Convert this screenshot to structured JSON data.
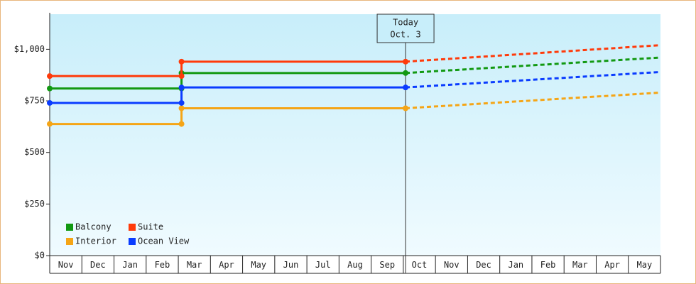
{
  "chart_data": {
    "type": "line",
    "categories": [
      "Nov",
      "Dec",
      "Jan",
      "Feb",
      "Mar",
      "Apr",
      "May",
      "Jun",
      "Jul",
      "Aug",
      "Sep",
      "Oct",
      "Nov",
      "Dec",
      "Jan",
      "Feb",
      "Mar",
      "Apr",
      "May"
    ],
    "xlim": [
      0,
      19
    ],
    "ylim": [
      0,
      1170
    ],
    "yticks": [
      {
        "value": 0,
        "label": "$0"
      },
      {
        "value": 250,
        "label": "$250"
      },
      {
        "value": 500,
        "label": "$500"
      },
      {
        "value": 750,
        "label": "$750"
      },
      {
        "value": 1000,
        "label": "$1,000"
      }
    ],
    "annotation": {
      "lines": [
        "Today",
        "Oct. 3"
      ],
      "x": 11.07
    },
    "series": [
      {
        "name": "Balcony",
        "color": "#129912",
        "x": [
          0,
          4.1,
          4.1,
          11.07
        ],
        "values": [
          810,
          810,
          885,
          885
        ],
        "forecast": {
          "x": [
            11.07,
            19
          ],
          "values": [
            885,
            960
          ]
        }
      },
      {
        "name": "Suite",
        "color": "#ff3a0a",
        "x": [
          0,
          4.1,
          4.1,
          11.07
        ],
        "values": [
          870,
          870,
          940,
          940
        ],
        "forecast": {
          "x": [
            11.07,
            19
          ],
          "values": [
            940,
            1020
          ]
        }
      },
      {
        "name": "Interior",
        "color": "#f5a516",
        "x": [
          0,
          4.1,
          4.1,
          11.07
        ],
        "values": [
          638,
          638,
          714,
          714
        ],
        "forecast": {
          "x": [
            11.07,
            19
          ],
          "values": [
            714,
            790
          ]
        }
      },
      {
        "name": "Ocean View",
        "color": "#0a3cff",
        "x": [
          0,
          4.1,
          4.1,
          11.07
        ],
        "values": [
          740,
          740,
          815,
          815
        ],
        "forecast": {
          "x": [
            11.07,
            19
          ],
          "values": [
            815,
            890
          ]
        }
      }
    ]
  }
}
